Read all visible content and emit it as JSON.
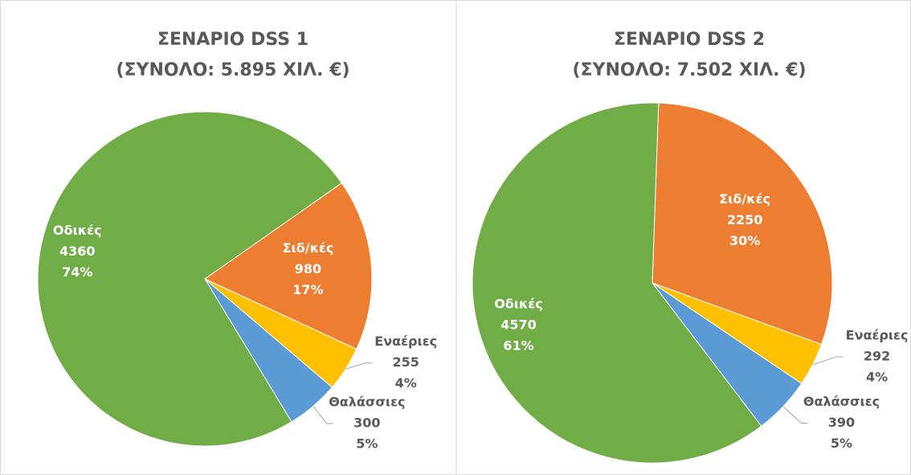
{
  "chart_data": [
    {
      "type": "pie",
      "title": "ΣΕΝΑΡΙΟ DSS 1",
      "subtitle": "(ΣΥΝΟΛΟ: 5.895 ΧΙΛ. €)",
      "categories": [
        "Σιδ/κές",
        "Εναέριες",
        "Θαλάσσιες",
        "Οδικές"
      ],
      "values": [
        980,
        255,
        300,
        4360
      ],
      "percent_labels": [
        "17%",
        "4%",
        "5%",
        "74%"
      ],
      "colors": [
        "#ed7d31",
        "#ffc000",
        "#5b9bd5",
        "#70ad47"
      ],
      "start_angle": 55
    },
    {
      "type": "pie",
      "title": "ΣΕΝΑΡΙΟ DSS 2",
      "subtitle": "(ΣΥΝΟΛΟ: 7.502 ΧΙΛ. €)",
      "categories": [
        "Σιδ/κές",
        "Εναέριες",
        "Θαλάσσιες",
        "Οδικές"
      ],
      "values": [
        2250,
        292,
        390,
        4570
      ],
      "percent_labels": [
        "30%",
        "4%",
        "5%",
        "61%"
      ],
      "colors": [
        "#ed7d31",
        "#ffc000",
        "#5b9bd5",
        "#70ad47"
      ],
      "start_angle": 2
    }
  ]
}
